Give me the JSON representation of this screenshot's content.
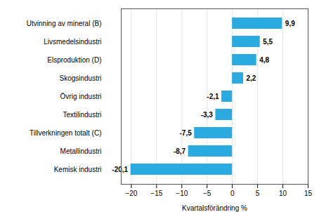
{
  "chart_data": {
    "type": "bar",
    "orientation": "horizontal",
    "categories": [
      "Kemisk industri",
      "Metallindustri",
      "Tillverkningen totalt (C)",
      "Textilindustri",
      "Övrig industri",
      "Skogsindustri",
      "Elsproduktion (D)",
      "Livsmedelsindustri",
      "Utvinning av mineral (B)"
    ],
    "values": [
      -20.1,
      -8.7,
      -7.5,
      -3.3,
      -2.1,
      2.2,
      4.8,
      5.5,
      9.9
    ],
    "value_labels": [
      "-20,1",
      "-8,7",
      "-7,5",
      "-3,3",
      "-2,1",
      "2,2",
      "4,8",
      "5,5",
      "9,9"
    ],
    "data_labels": true,
    "color": "#29ABE2",
    "xlabel": "Kvartalsförändring %",
    "xlim": [
      -22,
      15
    ],
    "xticks": [
      -20,
      -15,
      -10,
      -5,
      0,
      5,
      10,
      15
    ],
    "grid": true
  }
}
